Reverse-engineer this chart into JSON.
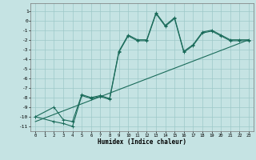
{
  "title": "",
  "xlabel": "Humidex (Indice chaleur)",
  "ylabel": "",
  "bg_color": "#c5e3e3",
  "grid_color": "#9dc8c8",
  "line_color": "#1a6b5a",
  "xlim": [
    -0.5,
    23.5
  ],
  "ylim": [
    -11.5,
    1.8
  ],
  "yticks": [
    1,
    0,
    -1,
    -2,
    -3,
    -4,
    -5,
    -6,
    -7,
    -8,
    -9,
    -10,
    -11
  ],
  "xticks": [
    0,
    1,
    2,
    3,
    4,
    5,
    6,
    7,
    8,
    9,
    10,
    11,
    12,
    13,
    14,
    15,
    16,
    17,
    18,
    19,
    20,
    21,
    22,
    23
  ],
  "line1_x": [
    0,
    2,
    3,
    4,
    5,
    6,
    7,
    8,
    9,
    10,
    11,
    12,
    13,
    14,
    15,
    16,
    17,
    18,
    19,
    20,
    21,
    22,
    23
  ],
  "line1_y": [
    -10,
    -9,
    -10.3,
    -10.5,
    -7.7,
    -8,
    -7.8,
    -8.1,
    -3.2,
    -1.5,
    -2.0,
    -2.0,
    0.8,
    -0.5,
    0.3,
    -3.2,
    -2.5,
    -1.2,
    -1.0,
    -1.5,
    -2.0,
    -2.0,
    -2.0
  ],
  "line2_x": [
    0,
    2,
    3,
    4,
    5,
    6,
    7,
    8,
    9,
    10,
    11,
    12,
    13,
    14,
    15,
    16,
    17,
    18,
    19,
    20,
    21,
    22,
    23
  ],
  "line2_y": [
    -10,
    -10.5,
    -10.7,
    -11.0,
    -7.8,
    -8.1,
    -7.9,
    -8.2,
    -3.3,
    -1.6,
    -2.1,
    -2.1,
    0.7,
    -0.6,
    0.2,
    -3.3,
    -2.6,
    -1.3,
    -1.1,
    -1.6,
    -2.1,
    -2.1,
    -2.1
  ],
  "line3_x": [
    0,
    23
  ],
  "line3_y": [
    -10.5,
    -2.0
  ]
}
